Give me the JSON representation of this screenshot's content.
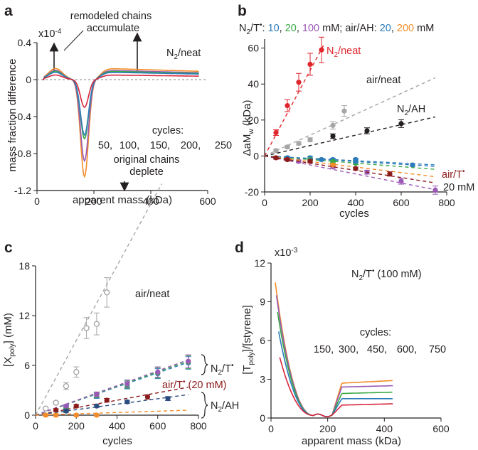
{
  "panels": {
    "a": {
      "label": "a",
      "annotations": {
        "top_line1": "remodeled chains",
        "top_line2": "accumulate",
        "bottom_line1": "original chains",
        "bottom_line2": "deplete",
        "condition": "N2/neat"
      },
      "legend": {
        "title": "cycles:"
      }
    },
    "b": {
      "label": "b",
      "header": {
        "prefix": "N2/T•:",
        "n2t_concs": [
          "10",
          "20",
          "100"
        ],
        "mid": "mM; air/AH:",
        "ah_concs": [
          "20",
          "200"
        ],
        "suffix": "mM"
      },
      "labels": {
        "n2neat": "N2/neat",
        "airneat": "air/neat",
        "n2ah": "N2/AH",
        "airt_line1": "air/T•",
        "airt_line2": "20 mM"
      }
    },
    "c": {
      "label": "c",
      "labels": {
        "airneat": "air/neat",
        "n2t": "N2/T•",
        "airt": "air/T• (20 mM)",
        "n2ah": "N2/AH"
      }
    },
    "d": {
      "label": "d",
      "condition": "N2/T• (100 mM)",
      "legend": {
        "title": "cycles:"
      }
    }
  },
  "chart_data": [
    {
      "id": "a",
      "type": "line",
      "xlabel": "apparent mass (kDa)",
      "ylabel": "mass fraction difference",
      "xlim": [
        0,
        600
      ],
      "ylim": [
        -1.2,
        0.4
      ],
      "y_multiplier": "x10-4",
      "xticks": [
        0,
        200,
        400,
        600
      ],
      "yticks": [
        0.4,
        0,
        -0.4,
        -0.8,
        -1.2
      ],
      "yticklabels": [
        "0.4",
        "0",
        "-0.4",
        "-0.8",
        "-1.2"
      ],
      "legend_title": "cycles:",
      "series": [
        {
          "name": "50",
          "color": "#d7263d",
          "peak_pos": 0.05,
          "trough": -0.3,
          "tail": 0.05
        },
        {
          "name": "100",
          "color": "#2b7bba",
          "peak_pos": 0.08,
          "trough": -0.6,
          "tail": 0.08
        },
        {
          "name": "150",
          "color": "#3aa845",
          "peak_pos": 0.09,
          "trough": -0.64,
          "tail": 0.09
        },
        {
          "name": "200",
          "color": "#9b59b6",
          "peak_pos": 0.1,
          "trough": -0.88,
          "tail": 0.1
        },
        {
          "name": "250",
          "color": "#f28c28",
          "peak_pos": 0.12,
          "trough": -1.05,
          "tail": 0.12
        }
      ]
    },
    {
      "id": "b",
      "type": "scatter",
      "xlabel": "cycles",
      "ylabel": "ΔaMw (kDa)",
      "xlim": [
        0,
        800
      ],
      "ylim": [
        -20,
        65
      ],
      "xticks": [
        0,
        200,
        400,
        600,
        800
      ],
      "yticks": [
        -20,
        0,
        20,
        40,
        60
      ],
      "series": [
        {
          "name": "N2/neat",
          "color": "#e0252d",
          "points": [
            [
              50,
              13
            ],
            [
              100,
              28
            ],
            [
              150,
              41
            ],
            [
              200,
              51
            ],
            [
              250,
              59
            ]
          ],
          "fit_slope": 0.238
        },
        {
          "name": "air/neat",
          "color": "#a6a6a6",
          "points": [
            [
              50,
              3
            ],
            [
              100,
              5
            ],
            [
              150,
              7
            ],
            [
              200,
              9
            ],
            [
              300,
              17
            ],
            [
              350,
              25
            ]
          ],
          "fit_slope": 0.058
        },
        {
          "name": "N2/AH",
          "color": "#231f20",
          "points": [
            [
              300,
              11
            ],
            [
              450,
              14
            ],
            [
              600,
              18
            ]
          ],
          "fit_slope": 0.029
        },
        {
          "name": "N2/T• 10 mM",
          "color": "#2b7bba",
          "points": [
            [
              100,
              -1
            ],
            [
              200,
              -1
            ],
            [
              300,
              -2
            ],
            [
              400,
              -2
            ],
            [
              650,
              -5
            ]
          ],
          "fit_slope": -0.0077
        },
        {
          "name": "N2/T• 20 mM",
          "color": "#3aa845",
          "points": [
            [
              100,
              -2
            ],
            [
              200,
              -2
            ],
            [
              300,
              -3
            ],
            [
              400,
              -4
            ]
          ],
          "fit_slope": -0.0099
        },
        {
          "name": "N2/T• 100 mM",
          "color": "#9b59b6",
          "points": [
            [
              150,
              -3
            ],
            [
              300,
              -6
            ],
            [
              450,
              -9
            ],
            [
              600,
              -14
            ],
            [
              750,
              -19
            ]
          ],
          "fit_slope": -0.025
        },
        {
          "name": "air/AH 20 mM",
          "color": "#2b7bba",
          "points": [
            [
              100,
              -1
            ],
            [
              250,
              -2
            ],
            [
              400,
              -3
            ]
          ],
          "fit_slope": -0.0066
        },
        {
          "name": "air/AH 200 mM",
          "color": "#f28c28",
          "points": [
            [
              100,
              -2
            ],
            [
              200,
              -3
            ],
            [
              300,
              -5
            ]
          ],
          "fit_slope": -0.0154
        },
        {
          "name": "air/T• 20 mM",
          "color": "#8b1a1a",
          "points": [
            [
              50,
              -1
            ],
            [
              100,
              -2
            ],
            [
              200,
              -3
            ],
            [
              400,
              -7
            ],
            [
              550,
              -10
            ]
          ],
          "fit_slope": -0.02
        }
      ]
    },
    {
      "id": "c",
      "type": "scatter",
      "xlabel": "cycles",
      "ylabel": "[Xpoly] (mM)",
      "xlim": [
        0,
        800
      ],
      "ylim": [
        0,
        18
      ],
      "xticks": [
        0,
        200,
        400,
        600,
        800
      ],
      "yticks": [
        0,
        6,
        12,
        18
      ],
      "series": [
        {
          "name": "air/neat",
          "color": "#a6a6a6",
          "points": [
            [
              50,
              0.8
            ],
            [
              100,
              1.5
            ],
            [
              150,
              3.5
            ],
            [
              200,
              5.2
            ],
            [
              250,
              10.5
            ],
            [
              300,
              11
            ],
            [
              350,
              14.8
            ]
          ],
          "fit_slope": 0.045
        },
        {
          "name": "N2/T• 10 mM",
          "color": "#2b7bba",
          "points": [
            [
              150,
              0.9
            ],
            [
              300,
              2.3
            ],
            [
              450,
              3.6
            ],
            [
              600,
              5
            ],
            [
              750,
              6.3
            ]
          ],
          "fit_slope": 0.0085
        },
        {
          "name": "N2/T• 20 mM",
          "color": "#3aa845",
          "points": [
            [
              150,
              1
            ],
            [
              300,
              2.4
            ],
            [
              450,
              3.7
            ],
            [
              600,
              5.1
            ],
            [
              750,
              6.4
            ]
          ],
          "fit_slope": 0.0087
        },
        {
          "name": "N2/T• 100 mM",
          "color": "#9b59b6",
          "points": [
            [
              150,
              1.1
            ],
            [
              300,
              2.5
            ],
            [
              450,
              3.8
            ],
            [
              600,
              5.2
            ],
            [
              750,
              6.5
            ]
          ],
          "fit_slope": 0.0089
        },
        {
          "name": "air/T• 20 mM",
          "color": "#8b1a1a",
          "points": [
            [
              100,
              0.6
            ],
            [
              200,
              1.1
            ],
            [
              350,
              1.8
            ],
            [
              550,
              2.2
            ]
          ],
          "fit_slope": 0.0045
        },
        {
          "name": "N2/AH 20 mM",
          "color": "#2b4c7e",
          "points": [
            [
              150,
              0.5
            ],
            [
              300,
              1.1
            ],
            [
              450,
              1.6
            ],
            [
              650,
              2
            ]
          ],
          "fit_slope": 0.0033
        },
        {
          "name": "N2/AH 200 mM",
          "color": "#f28c28",
          "points": [
            [
              50,
              0
            ],
            [
              100,
              0
            ],
            [
              200,
              0
            ],
            [
              300,
              0
            ]
          ],
          "fit_slope": 0.0008
        }
      ]
    },
    {
      "id": "d",
      "type": "line",
      "xlabel": "apparent mass (kDa)",
      "ylabel": "[Tpoly]/[styrene]",
      "xlim": [
        0,
        600
      ],
      "ylim": [
        0,
        12
      ],
      "y_multiplier": "x10-3",
      "xticks": [
        0,
        200,
        400,
        600
      ],
      "yticks": [
        0,
        3,
        6,
        9,
        12
      ],
      "legend_title": "cycles:",
      "series": [
        {
          "name": "150",
          "color": "#d7263d",
          "start": 4.5,
          "plateau": 1.0,
          "end": 1.1
        },
        {
          "name": "300",
          "color": "#2b7bba",
          "start": 6.5,
          "plateau": 1.5,
          "end": 1.5
        },
        {
          "name": "450",
          "color": "#3aa845",
          "start": 8.0,
          "plateau": 1.9,
          "end": 2.0
        },
        {
          "name": "600",
          "color": "#9b59b6",
          "start": 9.3,
          "plateau": 2.4,
          "end": 2.5
        },
        {
          "name": "750",
          "color": "#f28c28",
          "start": 10.3,
          "plateau": 2.7,
          "end": 2.9
        }
      ]
    }
  ]
}
